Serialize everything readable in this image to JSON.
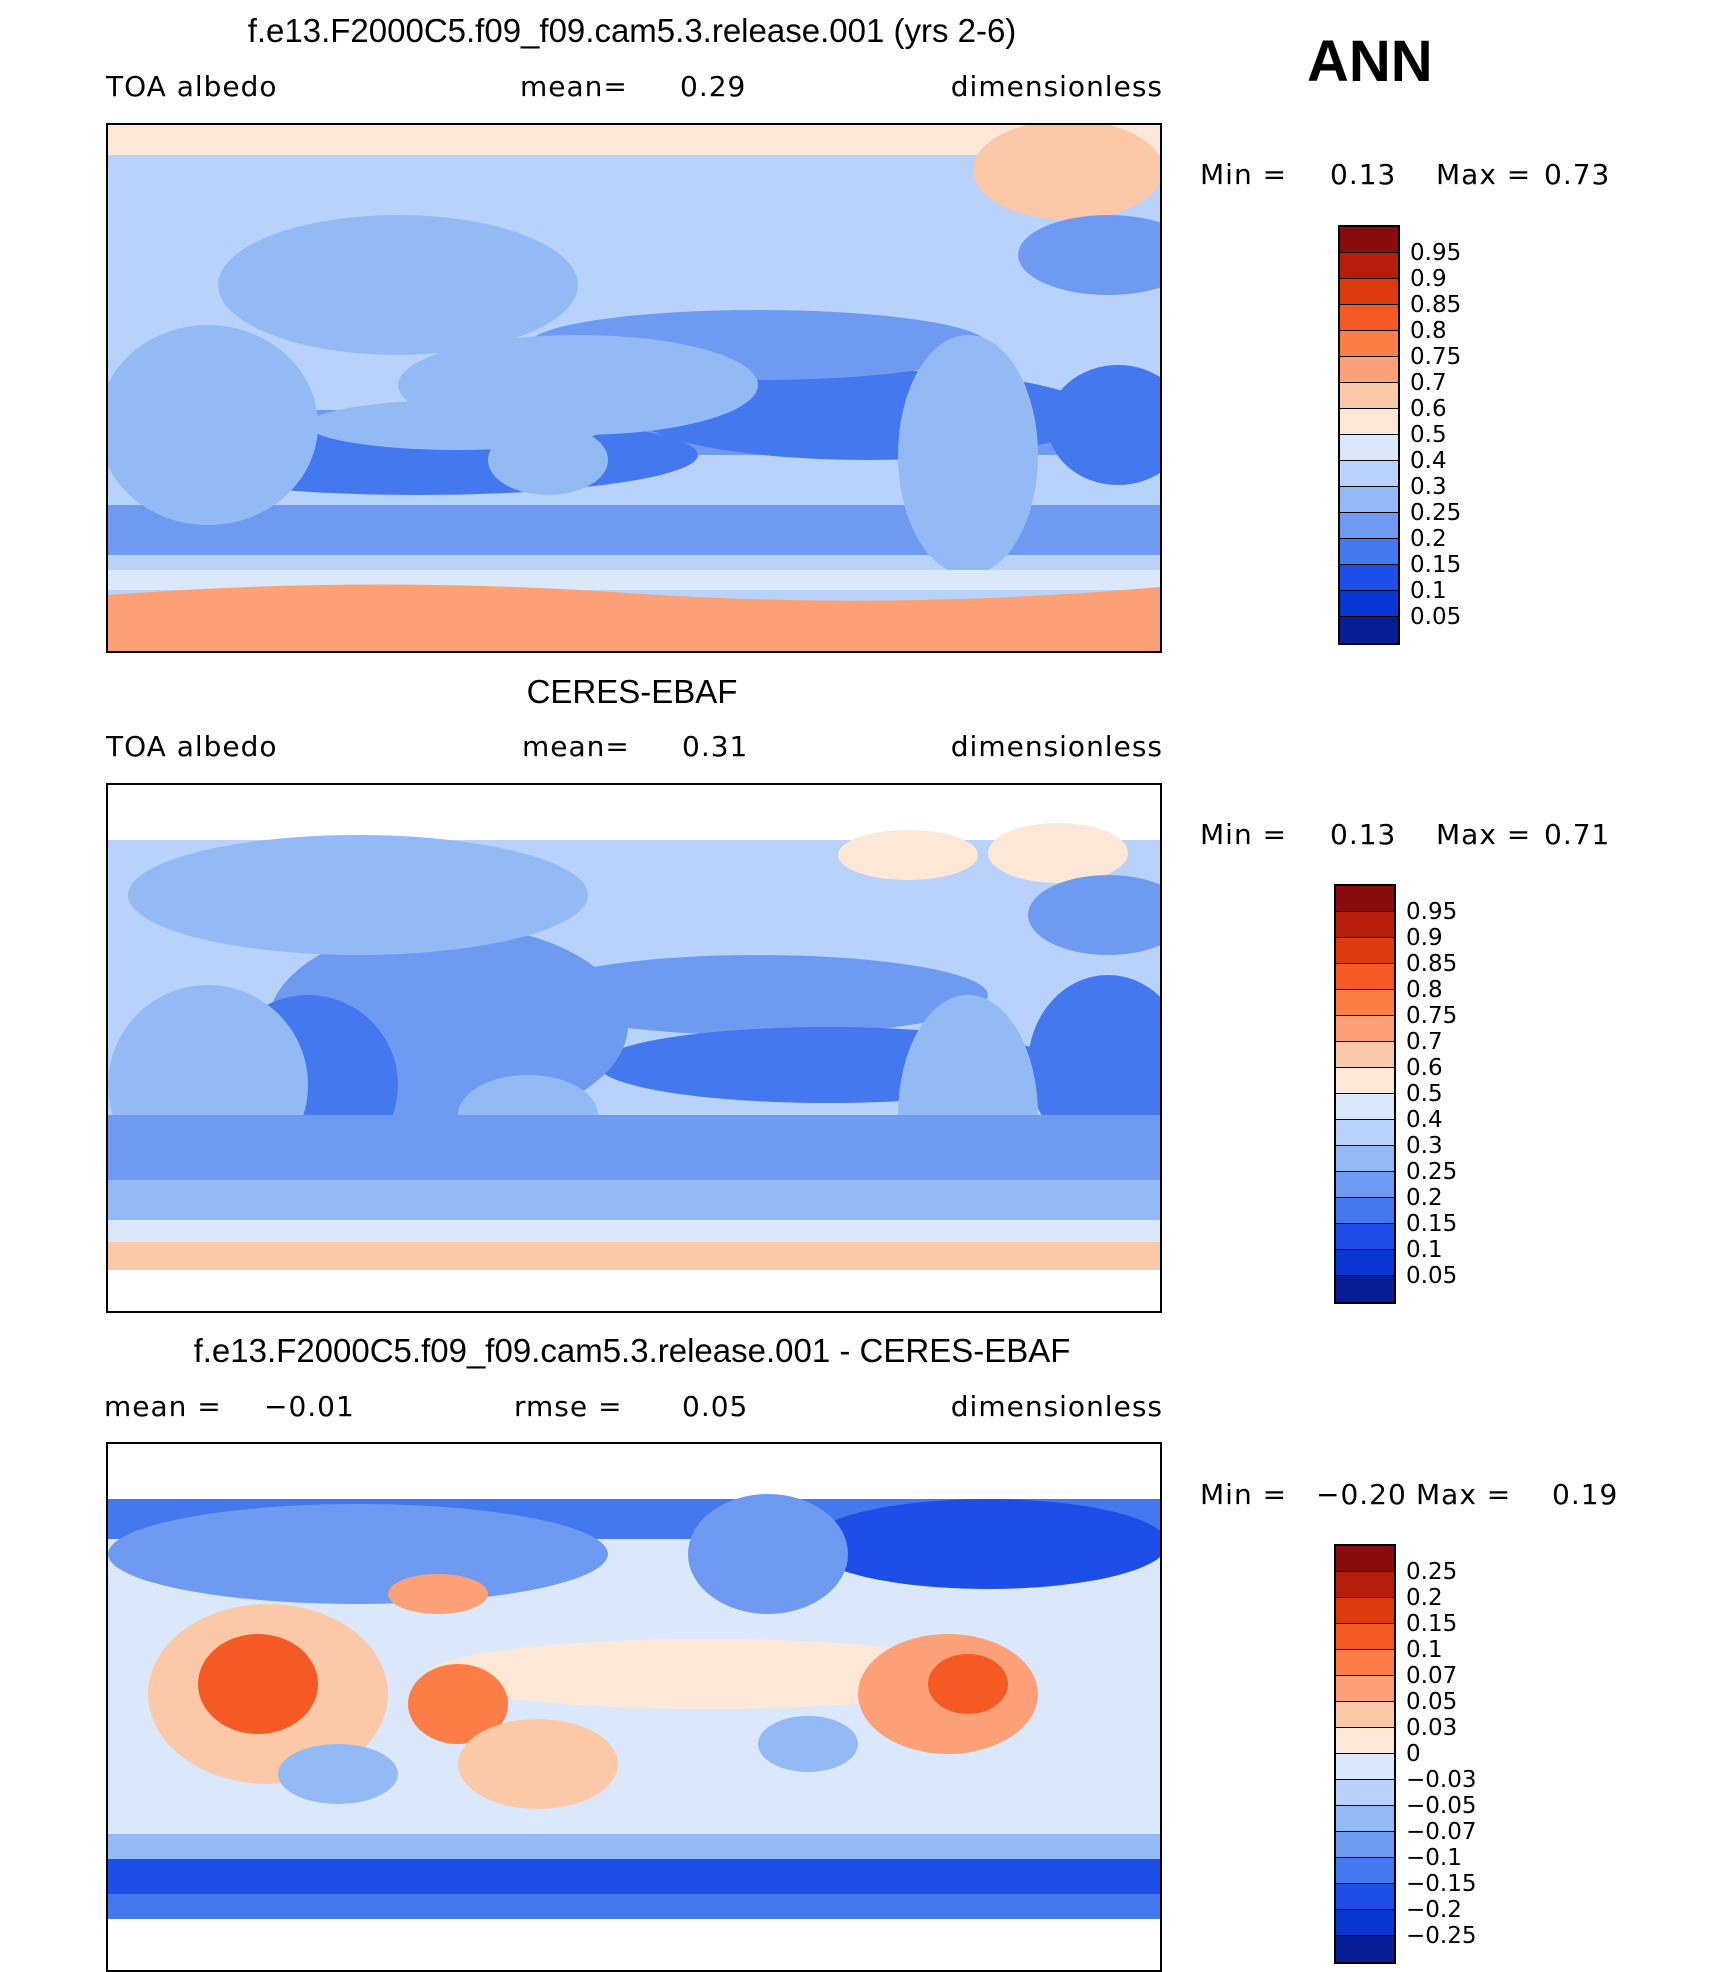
{
  "ann_label": "ANN",
  "chart_data": [
    {
      "type": "heatmap",
      "title": "f.e13.F2000C5.f09_f09.cam5.3.release.001 (yrs 2-6)",
      "variable": "TOA albedo",
      "stat1": {
        "label": "mean=",
        "value": "0.29"
      },
      "units": "dimensionless",
      "min_label": "Min =",
      "min": "0.13",
      "max_label": "Max =",
      "max": "0.73",
      "colorbar": {
        "ticks": [
          "0.95",
          "0.9",
          "0.85",
          "0.8",
          "0.75",
          "0.7",
          "0.6",
          "0.5",
          "0.4",
          "0.3",
          "0.25",
          "0.2",
          "0.15",
          "0.1",
          "0.05"
        ],
        "colors": [
          "#8a0d0d",
          "#b81c0a",
          "#dd3a10",
          "#f55a25",
          "#fc7d45",
          "#fca177",
          "#fbc9a7",
          "#fde8d8",
          "#dbe8fb",
          "#b9d2fb",
          "#94baf6",
          "#6e9bf1",
          "#4478ee",
          "#1e4ee8",
          "#0936d2",
          "#061d95"
        ]
      }
    },
    {
      "type": "heatmap",
      "title": "CERES-EBAF",
      "variable": "TOA albedo",
      "stat1": {
        "label": "mean=",
        "value": "0.31"
      },
      "units": "dimensionless",
      "min_label": "Min =",
      "min": "0.13",
      "max_label": "Max =",
      "max": "0.71",
      "colorbar": {
        "ticks": [
          "0.95",
          "0.9",
          "0.85",
          "0.8",
          "0.75",
          "0.7",
          "0.6",
          "0.5",
          "0.4",
          "0.3",
          "0.25",
          "0.2",
          "0.15",
          "0.1",
          "0.05"
        ],
        "colors": [
          "#8a0d0d",
          "#b81c0a",
          "#dd3a10",
          "#f55a25",
          "#fc7d45",
          "#fca177",
          "#fbc9a7",
          "#fde8d8",
          "#dbe8fb",
          "#b9d2fb",
          "#94baf6",
          "#6e9bf1",
          "#4478ee",
          "#1e4ee8",
          "#0936d2",
          "#061d95"
        ]
      }
    },
    {
      "type": "heatmap",
      "title": "f.e13.F2000C5.f09_f09.cam5.3.release.001 - CERES-EBAF",
      "stat1": {
        "label": "mean =",
        "value": "−0.01"
      },
      "stat2": {
        "label": "rmse =",
        "value": "0.05"
      },
      "units": "dimensionless",
      "min_label": "Min =",
      "min": "−0.20",
      "max_label": "Max =",
      "max": "0.19",
      "colorbar": {
        "ticks": [
          "0.25",
          "0.2",
          "0.15",
          "0.1",
          "0.07",
          "0.05",
          "0.03",
          "0",
          "−0.03",
          "−0.05",
          "−0.07",
          "−0.1",
          "−0.15",
          "−0.2",
          "−0.25"
        ],
        "colors": [
          "#8a0d0d",
          "#b81c0a",
          "#dd3a10",
          "#f55a25",
          "#fc7d45",
          "#fca177",
          "#fbc9a7",
          "#fde8d8",
          "#dbe8fb",
          "#b9d2fb",
          "#94baf6",
          "#6e9bf1",
          "#4478ee",
          "#1e4ee8",
          "#0936d2",
          "#061d95"
        ]
      }
    }
  ]
}
